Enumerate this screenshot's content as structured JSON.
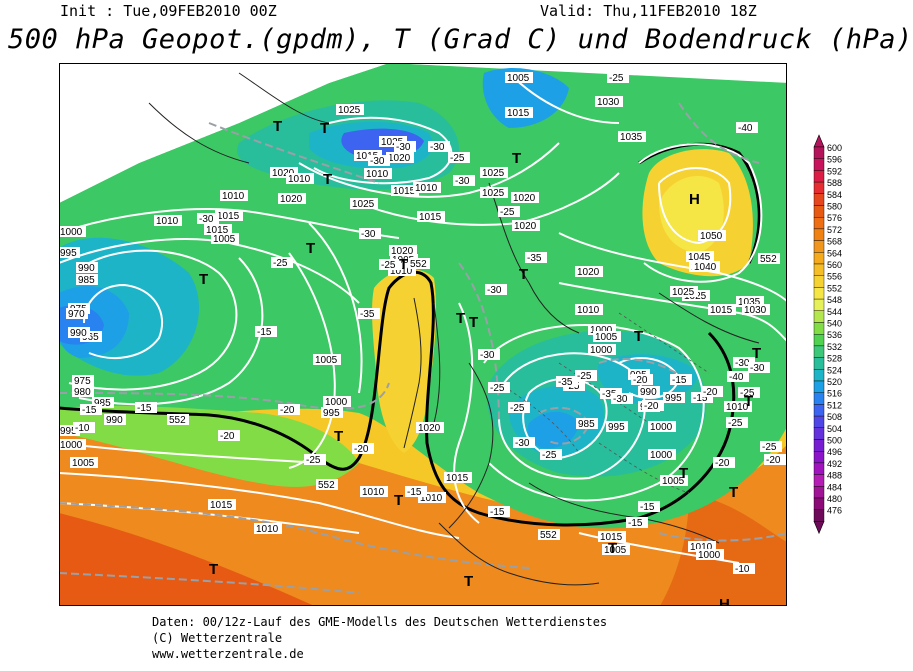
{
  "header": {
    "init": "Init : Tue,09FEB2010 00Z",
    "valid": "Valid: Thu,11FEB2010 18Z",
    "title": "500 hPa Geopot.(gpdm), T (Grad C) und Bodendruck (hPa)"
  },
  "footer": {
    "line1": "Daten: 00/12z-Lauf des GME-Modells des Deutschen Wetterdienstes",
    "line2": "(C) Wetterzentrale",
    "line3": "www.wetterzentrale.de"
  },
  "legend": {
    "values": [
      "600",
      "596",
      "592",
      "588",
      "584",
      "580",
      "576",
      "572",
      "568",
      "564",
      "560",
      "556",
      "552",
      "548",
      "544",
      "540",
      "536",
      "532",
      "528",
      "524",
      "520",
      "516",
      "512",
      "508",
      "504",
      "500",
      "496",
      "492",
      "488",
      "484",
      "480",
      "476"
    ],
    "colors": [
      "#b4145a",
      "#c8145a",
      "#dc1e46",
      "#e62d32",
      "#e6461e",
      "#e65a14",
      "#ee6e14",
      "#f08214",
      "#f0961e",
      "#f5aa1e",
      "#f5be28",
      "#f5d232",
      "#f5e646",
      "#e6f05a",
      "#b4e650",
      "#82dc46",
      "#50d250",
      "#3cc878",
      "#28be9b",
      "#1eb4c8",
      "#1ea0e6",
      "#2882f0",
      "#3c64f0",
      "#5046e6",
      "#6432dc",
      "#781ed2",
      "#8c14c8",
      "#a014be",
      "#b41eb4",
      "#a01496",
      "#8c0a78",
      "#6e0a5a"
    ]
  },
  "map_labels": {
    "pressure": [
      "1020",
      "1015",
      "1025",
      "1025",
      "1030",
      "1035",
      "1025",
      "1040",
      "1025",
      "1020",
      "1020",
      "1010",
      "1010",
      "1020",
      "1015",
      "1010",
      "1015",
      "1010",
      "1020",
      "1020",
      "1005",
      "1010",
      "1015",
      "1015",
      "1015",
      "1020",
      "1005",
      "1010",
      "1000",
      "995",
      "990",
      "985",
      "975",
      "970",
      "965",
      "990",
      "975",
      "980",
      "985",
      "990",
      "1000",
      "995",
      "1005",
      "1005",
      "1000",
      "995",
      "1020",
      "1025",
      "1025",
      "1015",
      "1020",
      "1010",
      "1000",
      "1005",
      "1000",
      "985",
      "995",
      "995",
      "990",
      "995",
      "995",
      "1000",
      "1000",
      "1005",
      "1050",
      "1045",
      "1040",
      "1025",
      "1015",
      "1035",
      "1030",
      "1010",
      "1010",
      "1010",
      "1015",
      "1010",
      "1015",
      "1005",
      "1010",
      "1000",
      "1005"
    ],
    "temperature": [
      "-25",
      "-40",
      "-30",
      "-30",
      "-30",
      "-25",
      "-25",
      "-30",
      "-30",
      "-25",
      "-15",
      "-20",
      "-20",
      "-25",
      "-20",
      "-15",
      "-15",
      "-15",
      "-10",
      "-30",
      "-25",
      "-35",
      "-30",
      "-35",
      "-30",
      "-25",
      "-25",
      "-25",
      "-35",
      "-30",
      "-25",
      "-25",
      "-35",
      "-30",
      "-20",
      "-20",
      "-15",
      "-15",
      "-20",
      "-20",
      "-25",
      "-25",
      "-40",
      "-30",
      "-30",
      "-25",
      "-20",
      "-15",
      "-15",
      "-10",
      "-10",
      "-10",
      "-15"
    ],
    "geopotential": [
      "552",
      "552",
      "552",
      "552",
      "552"
    ],
    "centers": [
      "H",
      "T",
      "T",
      "T",
      "T",
      "T",
      "T",
      "T",
      "T",
      "T",
      "T",
      "T",
      "T",
      "T",
      "T",
      "T",
      "T",
      "T",
      "T",
      "T",
      "T",
      "H"
    ]
  }
}
